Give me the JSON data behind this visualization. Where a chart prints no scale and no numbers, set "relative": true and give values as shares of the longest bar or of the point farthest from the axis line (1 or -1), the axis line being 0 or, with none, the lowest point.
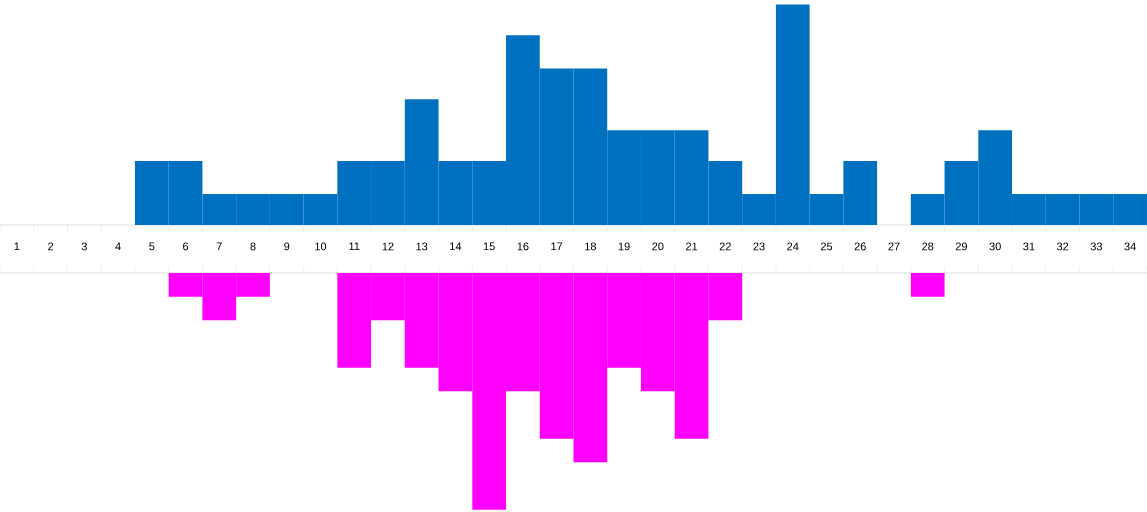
{
  "chart_data": [
    {
      "type": "bar",
      "relative": true,
      "categories": [
        "1",
        "2",
        "3",
        "4",
        "5",
        "6",
        "7",
        "8",
        "9",
        "10",
        "11",
        "12",
        "13",
        "14",
        "15",
        "16",
        "17",
        "18",
        "19",
        "20",
        "21",
        "22",
        "23",
        "24",
        "25",
        "26",
        "27",
        "28",
        "29",
        "30",
        "31",
        "32",
        "33",
        "34"
      ],
      "series": [
        {
          "color": "#0070c0",
          "values": [
            0,
            0,
            0,
            0,
            0.29,
            0.29,
            0.14,
            0.14,
            0.14,
            0.14,
            0.29,
            0.29,
            0.57,
            0.29,
            0.29,
            0.86,
            0.71,
            0.71,
            0.43,
            0.43,
            0.43,
            0.29,
            0.14,
            1,
            0.14,
            0.29,
            0,
            0.14,
            0.29,
            0.43,
            0.14,
            0.14,
            0.14,
            0.14
          ]
        }
      ]
    },
    {
      "type": "bar",
      "relative": true,
      "tick_labels": false,
      "categories": [
        "1",
        "2",
        "3",
        "4",
        "5",
        "6",
        "7",
        "8",
        "9",
        "10",
        "11",
        "12",
        "13",
        "14",
        "15",
        "16",
        "17",
        "18",
        "19",
        "20",
        "21",
        "22",
        "23",
        "24",
        "25",
        "26",
        "27",
        "28",
        "29",
        "30",
        "31",
        "32",
        "33",
        "34"
      ],
      "series": [
        {
          "color": "#ff00ff",
          "values": [
            0,
            0,
            0,
            0,
            0,
            -0.1,
            -0.2,
            -0.1,
            0,
            0,
            -0.4,
            -0.2,
            -0.4,
            -0.5,
            -1,
            -0.5,
            -0.7,
            -0.8,
            -0.4,
            -0.5,
            -0.7,
            -0.2,
            0,
            0,
            0,
            0,
            0,
            -0.1,
            0,
            0,
            0,
            0,
            0,
            0
          ]
        }
      ]
    }
  ]
}
